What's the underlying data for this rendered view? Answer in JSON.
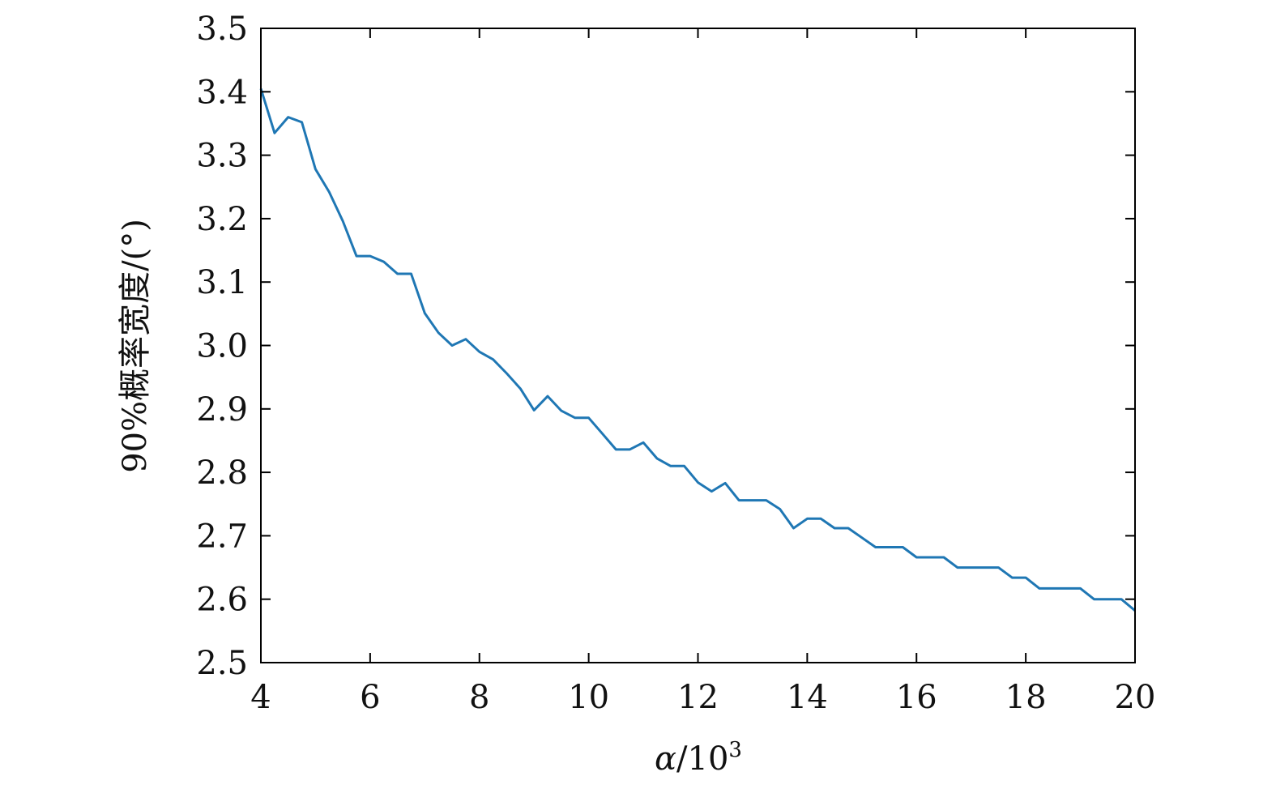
{
  "chart_data": {
    "type": "line",
    "title": "",
    "xlabel": "α/10³",
    "xlabel_parts": {
      "symbol": "α",
      "base": "/10",
      "exp": "3"
    },
    "ylabel": "90%概率宽度/(°)",
    "xlim": [
      4,
      20
    ],
    "ylim": [
      2.5,
      3.5
    ],
    "x_ticks": [
      4,
      6,
      8,
      10,
      12,
      14,
      16,
      18,
      20
    ],
    "x_tick_labels": [
      "4",
      "6",
      "8",
      "10",
      "12",
      "14",
      "16",
      "18",
      "20"
    ],
    "y_ticks": [
      2.5,
      2.6,
      2.7,
      2.8,
      2.9,
      3.0,
      3.1,
      3.2,
      3.3,
      3.4,
      3.5
    ],
    "y_tick_labels": [
      "2.5",
      "2.6",
      "2.7",
      "2.8",
      "2.9",
      "3.0",
      "3.1",
      "3.2",
      "3.3",
      "3.4",
      "3.5"
    ],
    "grid": false,
    "series": [
      {
        "color": "#1f77b4",
        "x": [
          4.0,
          4.25,
          4.5,
          4.75,
          5.0,
          5.25,
          5.5,
          5.75,
          6.0,
          6.25,
          6.5,
          6.75,
          7.0,
          7.25,
          7.5,
          7.75,
          8.0,
          8.25,
          8.5,
          8.75,
          9.0,
          9.25,
          9.5,
          9.75,
          10.0,
          10.25,
          10.5,
          10.75,
          11.0,
          11.25,
          11.5,
          11.75,
          12.0,
          12.25,
          12.5,
          12.75,
          13.0,
          13.25,
          13.5,
          13.75,
          14.0,
          14.25,
          14.5,
          14.75,
          15.0,
          15.25,
          15.5,
          15.75,
          16.0,
          16.25,
          16.5,
          16.75,
          17.0,
          17.25,
          17.5,
          17.75,
          18.0,
          18.25,
          18.5,
          18.75,
          19.0,
          19.25,
          19.5,
          19.75,
          20.0
        ],
        "y": [
          3.405,
          3.335,
          3.36,
          3.352,
          3.278,
          3.242,
          3.196,
          3.141,
          3.141,
          3.132,
          3.113,
          3.113,
          3.051,
          3.02,
          3.0,
          3.01,
          2.99,
          2.978,
          2.956,
          2.932,
          2.898,
          2.92,
          2.897,
          2.886,
          2.886,
          2.861,
          2.836,
          2.836,
          2.847,
          2.822,
          2.81,
          2.81,
          2.784,
          2.77,
          2.783,
          2.756,
          2.756,
          2.756,
          2.742,
          2.712,
          2.727,
          2.727,
          2.712,
          2.712,
          2.697,
          2.682,
          2.682,
          2.682,
          2.666,
          2.666,
          2.666,
          2.65,
          2.65,
          2.65,
          2.65,
          2.634,
          2.634,
          2.617,
          2.617,
          2.617,
          2.617,
          2.6,
          2.6,
          2.6,
          2.582
        ]
      }
    ]
  }
}
